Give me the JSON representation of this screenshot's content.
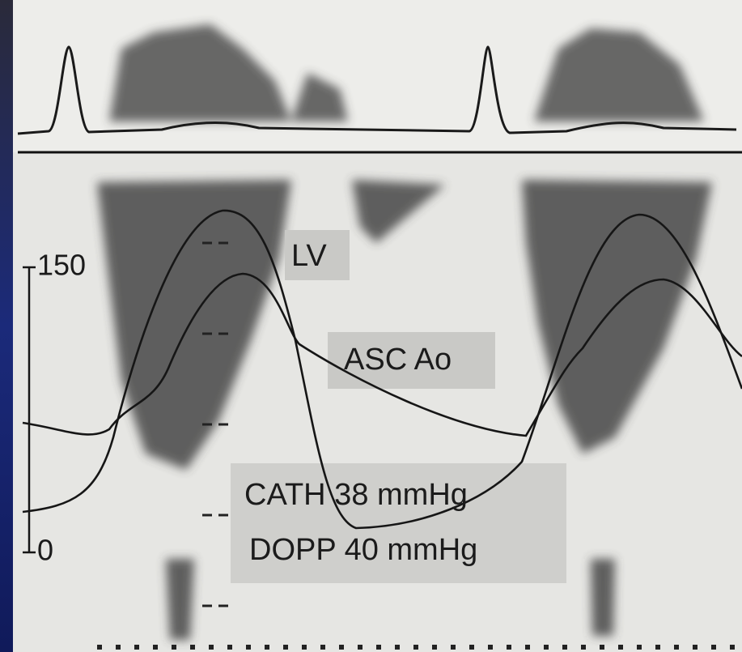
{
  "axis": {
    "top": "150",
    "bottom": "0"
  },
  "labels": {
    "lv": "LV",
    "aorta": "ASC Ao",
    "cath": "CATH 38 mmHg",
    "dopp": "DOPP 40 mmHg"
  }
}
